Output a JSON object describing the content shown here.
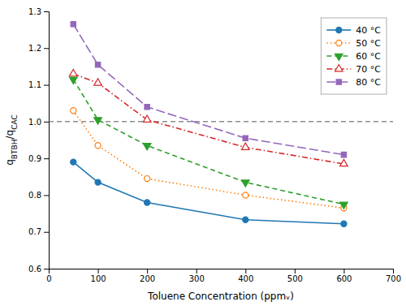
{
  "chart_data": {
    "type": "line",
    "x": [
      50,
      100,
      200,
      400,
      600
    ],
    "series": [
      {
        "name": "40 °C",
        "values": [
          0.89,
          0.835,
          0.78,
          0.733,
          0.722
        ],
        "marker": "circle",
        "line_style": "solid"
      },
      {
        "name": "50 °C",
        "values": [
          1.03,
          0.935,
          0.845,
          0.8,
          0.765
        ],
        "marker": "circle-open",
        "line_style": "dotted"
      },
      {
        "name": "60 °C",
        "values": [
          1.115,
          1.005,
          0.935,
          0.835,
          0.775
        ],
        "marker": "triangle-down",
        "line_style": "dashed"
      },
      {
        "name": "70 °C",
        "values": [
          1.13,
          1.105,
          1.005,
          0.93,
          0.885
        ],
        "marker": "triangle-up-open",
        "line_style": "dashdot"
      },
      {
        "name": "80 °C",
        "values": [
          1.265,
          1.155,
          1.04,
          0.955,
          0.91
        ],
        "marker": "square",
        "line_style": "longdash"
      }
    ],
    "x_label": "Toluene Concentration (ppmᵥ)",
    "y_label": "qBTBH/qCAC",
    "xlim": [
      0,
      700
    ],
    "ylim": [
      0.6,
      1.3
    ],
    "xticks": [
      0,
      100,
      200,
      300,
      400,
      500,
      600,
      700
    ],
    "yticks": [
      0.6,
      0.7,
      0.8,
      0.9,
      {
        "value": 1.0,
        "label": "1.0"
      },
      1.1,
      1.2,
      1.3
    ],
    "hline": 1.0,
    "grid": false,
    "legend": "upper right"
  }
}
